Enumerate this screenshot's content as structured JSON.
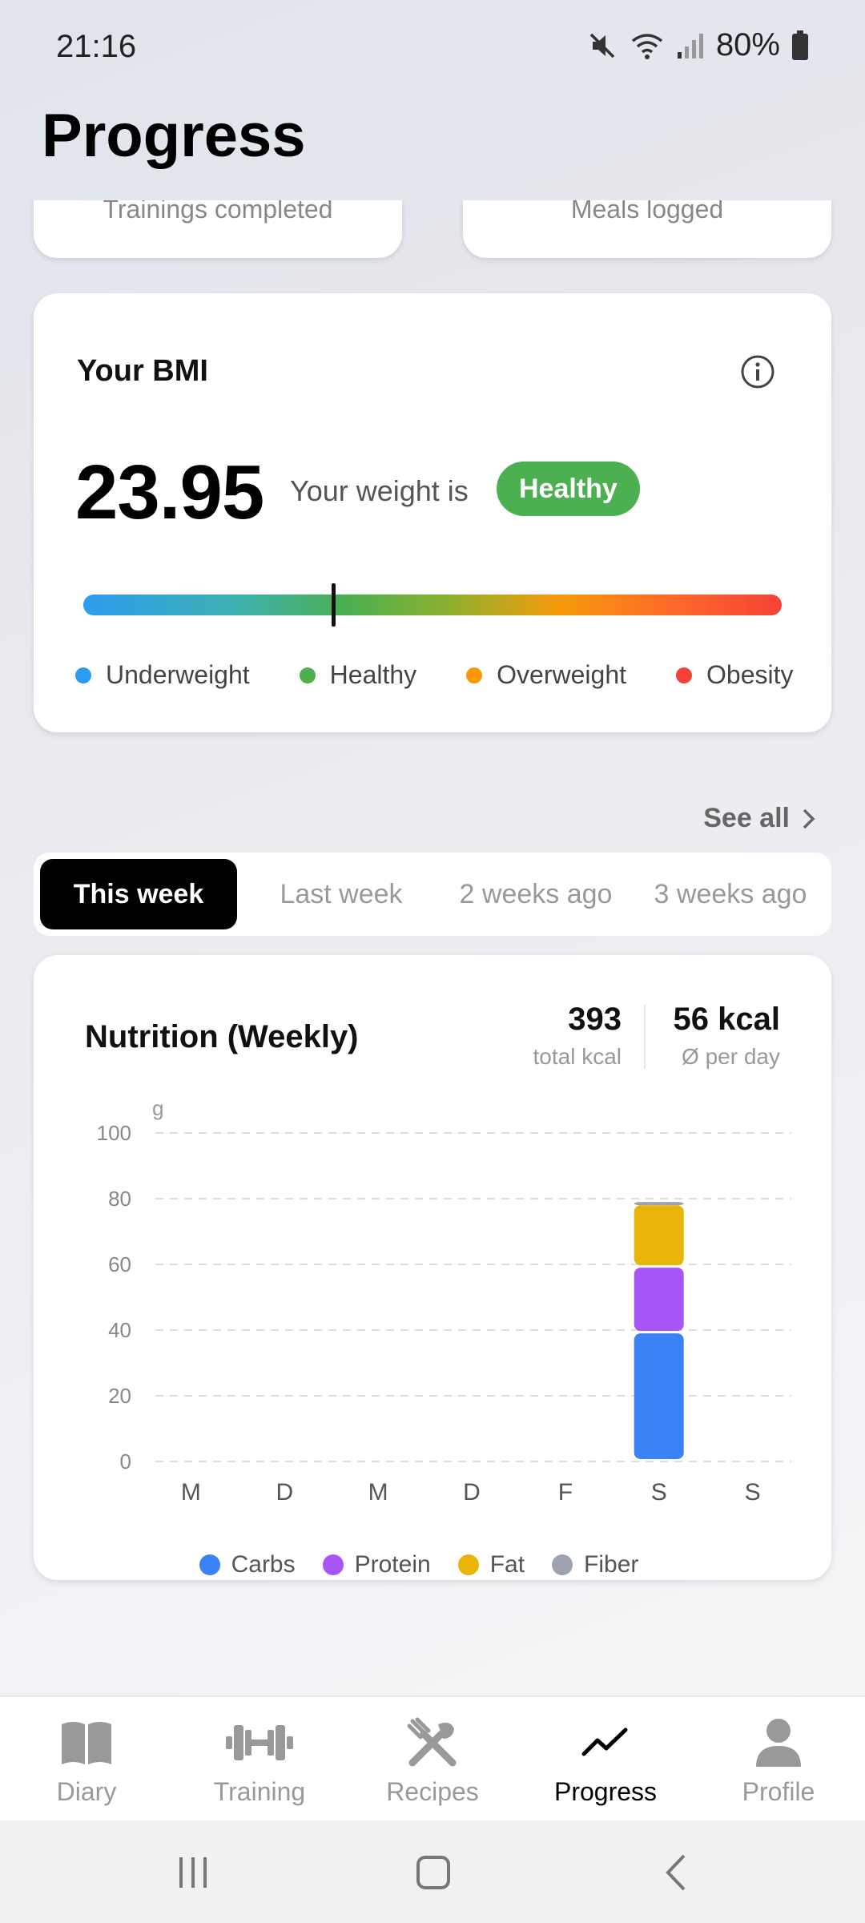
{
  "status": {
    "time": "21:16",
    "battery": "80%"
  },
  "page": {
    "title": "Progress"
  },
  "stats": [
    {
      "label": "Trainings completed"
    },
    {
      "label": "Meals logged"
    }
  ],
  "bmi": {
    "title": "Your BMI",
    "value": "23.95",
    "weight_text": "Your weight is",
    "status": "Healthy",
    "status_color": "#4caf50",
    "legend": [
      {
        "label": "Underweight",
        "color": "#2d9cf0"
      },
      {
        "label": "Healthy",
        "color": "#4caf50"
      },
      {
        "label": "Overweight",
        "color": "#ff9800"
      },
      {
        "label": "Obesity",
        "color": "#f44336"
      }
    ]
  },
  "see_all": "See all",
  "weeks": {
    "tabs": [
      "This week",
      "Last week",
      "2 weeks ago",
      "3 weeks ago"
    ],
    "active": "This week"
  },
  "nutrition": {
    "title": "Nutrition (Weekly)",
    "total_kcal": "393",
    "total_kcal_label": "total kcal",
    "avg_kcal": "56 kcal",
    "avg_kcal_label": "Ø per day"
  },
  "chart_data": {
    "type": "bar",
    "stacked": true,
    "categories": [
      "M",
      "D",
      "M",
      "D",
      "F",
      "S",
      "S"
    ],
    "ylabel": "g",
    "ylim": [
      0,
      100
    ],
    "yticks": [
      0,
      20,
      40,
      60,
      80,
      100
    ],
    "grid": true,
    "legend_position": "bottom",
    "series": [
      {
        "name": "Carbs",
        "color": "#3b82f6",
        "values": [
          0,
          0,
          0,
          0,
          0,
          39,
          0
        ]
      },
      {
        "name": "Protein",
        "color": "#a855f7",
        "values": [
          0,
          0,
          0,
          0,
          0,
          20,
          0
        ]
      },
      {
        "name": "Fat",
        "color": "#eab308",
        "values": [
          0,
          0,
          0,
          0,
          0,
          19,
          0
        ]
      },
      {
        "name": "Fiber",
        "color": "#9ca3af",
        "values": [
          0,
          0,
          0,
          0,
          0,
          1,
          0
        ]
      }
    ]
  },
  "nav": {
    "items": [
      {
        "label": "Diary",
        "icon": "book-icon"
      },
      {
        "label": "Training",
        "icon": "dumbbell-icon"
      },
      {
        "label": "Recipes",
        "icon": "utensils-icon"
      },
      {
        "label": "Progress",
        "icon": "trend-icon"
      },
      {
        "label": "Profile",
        "icon": "person-icon"
      }
    ],
    "active": "Progress"
  }
}
